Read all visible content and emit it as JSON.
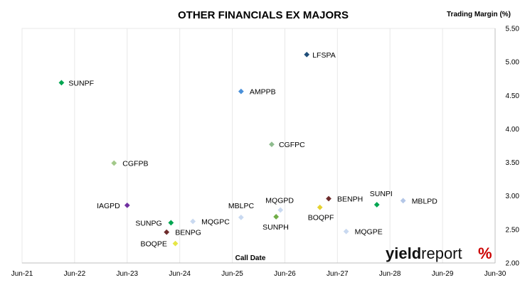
{
  "chart_data": {
    "type": "scatter",
    "title": "OTHER FINANCIALS EX MAJORS",
    "xlabel": "Call Date",
    "ylabel": "Trading Margin (%)",
    "x_ticks": [
      "Jun-21",
      "Jun-22",
      "Jun-23",
      "Jun-24",
      "Jun-25",
      "Jun-26",
      "Jun-27",
      "Jun-28",
      "Jun-29",
      "Jun-30"
    ],
    "y_ticks": [
      "2.00",
      "2.50",
      "3.00",
      "3.50",
      "4.00",
      "4.50",
      "5.00",
      "5.50"
    ],
    "xlim": [
      "Jun-21",
      "Jun-30"
    ],
    "ylim": [
      2.0,
      5.5
    ],
    "grid": "vertical-only",
    "points": [
      {
        "label": "LFSPA",
        "x": "2026-11",
        "y": 5.11,
        "color": "#1f4e79"
      },
      {
        "label": "SUNPF",
        "x": "2022-03",
        "y": 4.69,
        "color": "#00a651"
      },
      {
        "label": "AMPPB",
        "x": "2025-08",
        "y": 4.56,
        "color": "#4a90d9"
      },
      {
        "label": "CGFPC",
        "x": "2026-03",
        "y": 3.77,
        "color": "#8fbc8f"
      },
      {
        "label": "CGFPB",
        "x": "2023-03",
        "y": 3.49,
        "color": "#a3c98a"
      },
      {
        "label": "IAGPD",
        "x": "2023-06",
        "y": 2.86,
        "color": "#7030a0"
      },
      {
        "label": "SUNPI",
        "x": "2028-03",
        "y": 2.87,
        "color": "#00a651"
      },
      {
        "label": "MBLPD",
        "x": "2028-09",
        "y": 2.93,
        "color": "#b4c7e7"
      },
      {
        "label": "BENPH",
        "x": "2027-04",
        "y": 2.96,
        "color": "#6e2c2c"
      },
      {
        "label": "MQGPD",
        "x": "2026-05",
        "y": 2.79,
        "color": "#c9d9f0"
      },
      {
        "label": "MBLPC",
        "x": "2025-08",
        "y": 2.68,
        "color": "#c9d9f0"
      },
      {
        "label": "BOQPF",
        "x": "2027-02",
        "y": 2.83,
        "color": "#e6d230"
      },
      {
        "label": "SUNPH",
        "x": "2026-04",
        "y": 2.69,
        "color": "#70ad47"
      },
      {
        "label": "SUNPG",
        "x": "2024-04",
        "y": 2.6,
        "color": "#00a651"
      },
      {
        "label": "MQGPC",
        "x": "2024-09",
        "y": 2.62,
        "color": "#c9d9f0"
      },
      {
        "label": "BENPG",
        "x": "2024-03",
        "y": 2.46,
        "color": "#6e2c2c"
      },
      {
        "label": "MQGPE",
        "x": "2027-08",
        "y": 2.47,
        "color": "#c9d9f0"
      },
      {
        "label": "BOQPE",
        "x": "2024-05",
        "y": 2.29,
        "color": "#e6e645"
      }
    ]
  },
  "logo": {
    "part1": "yield",
    "part2": "report",
    "part3": "%"
  }
}
